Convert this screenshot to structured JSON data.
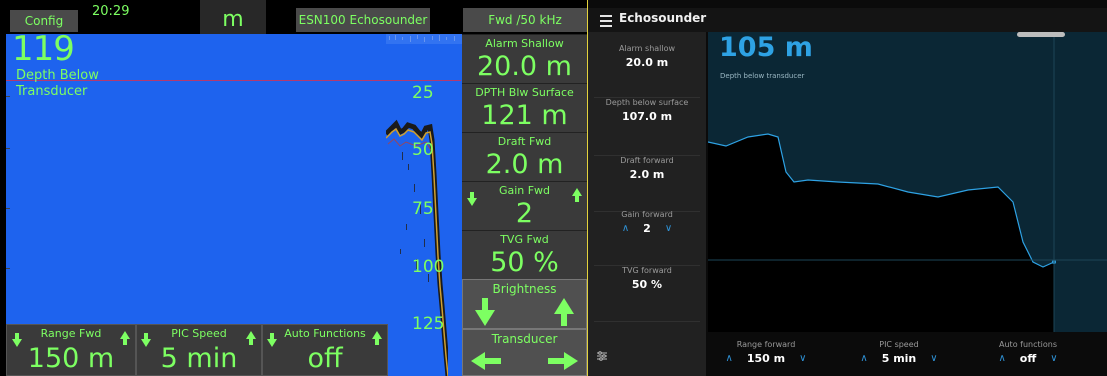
{
  "left": {
    "topbar": {
      "config_label": "Config",
      "time": "20:29",
      "unit": "m",
      "model": "ESN100 Echosounder",
      "frequency": "Fwd /50 kHz"
    },
    "depth": {
      "value": "119",
      "label": "Depth Below Transducer"
    },
    "scale": [
      "25",
      "50",
      "75",
      "100",
      "125"
    ],
    "tiles": {
      "alarm_shallow": {
        "label": "Alarm Shallow",
        "value": "20.0 m"
      },
      "dpth_blw_surface": {
        "label": "DPTH Blw Surface",
        "value": "121 m"
      },
      "draft_fwd": {
        "label": "Draft Fwd",
        "value": "2.0 m"
      },
      "gain_fwd": {
        "label": "Gain Fwd",
        "value": "2"
      },
      "tvg_fwd": {
        "label": "TVG Fwd",
        "value": "50 %"
      },
      "brightness": {
        "label": "Brightness"
      },
      "transducer": {
        "label": "Transducer"
      }
    },
    "bottom_tiles": {
      "range_fwd": {
        "label": "Range Fwd",
        "value": "150 m"
      },
      "pic_speed": {
        "label": "PIC Speed",
        "value": "5 min"
      },
      "auto_functions": {
        "label": "Auto Functions",
        "value": "off"
      }
    },
    "colors": {
      "text": "#7dff62",
      "water": "#1e63ee",
      "tile": "#3a3a3a"
    }
  },
  "right": {
    "header": {
      "title": "Echosounder"
    },
    "depth": {
      "value": "105 m",
      "label": "Depth below transducer"
    },
    "sidebar": [
      {
        "label": "Alarm shallow",
        "value": "20.0 m"
      },
      {
        "label": "Depth below surface",
        "value": "107.0 m"
      },
      {
        "label": "Draft forward",
        "value": "2.0 m"
      },
      {
        "label": "Gain forward",
        "value": "2"
      },
      {
        "label": "TVG forward",
        "value": "50 %"
      }
    ],
    "bottom": [
      {
        "label": "Range forward",
        "value": "150 m"
      },
      {
        "label": "PIC speed",
        "value": "5 min"
      },
      {
        "label": "Auto functions",
        "value": "off"
      }
    ],
    "colors": {
      "accent": "#2ea2e4",
      "water": "#0b2735",
      "sidebar": "#212121"
    }
  }
}
